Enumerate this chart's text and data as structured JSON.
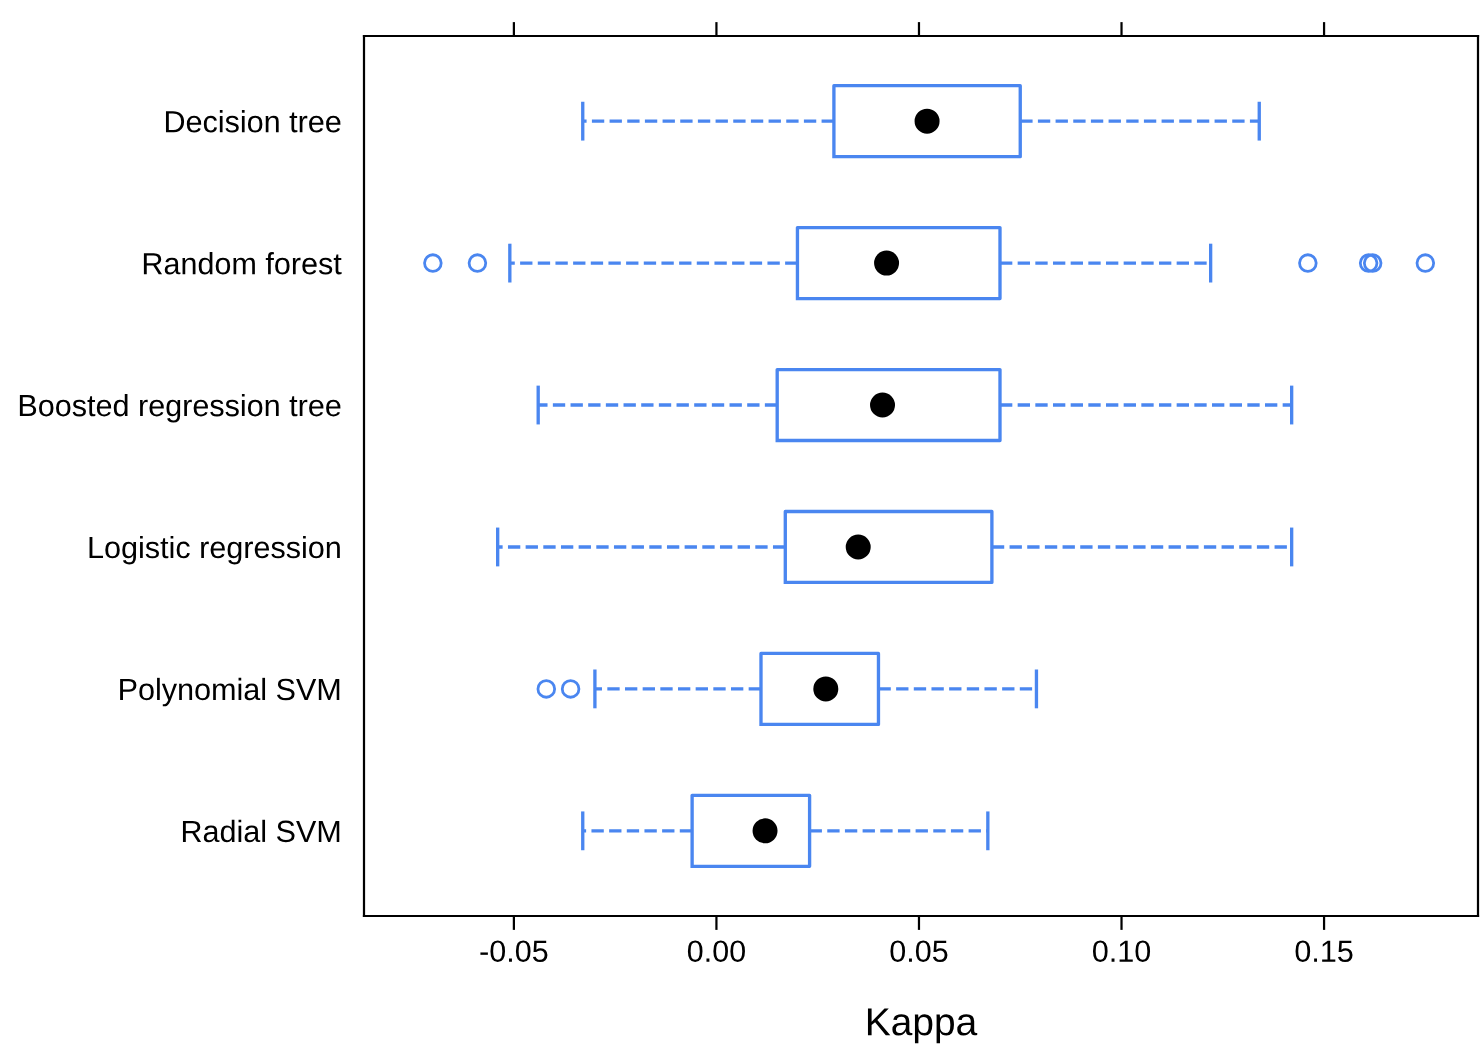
{
  "chart_data": {
    "type": "box",
    "xlabel": "Kappa",
    "orientation": "horizontal",
    "color": "#4a86f0",
    "categories": [
      "Decision tree",
      "Random forest",
      "Boosted regression tree",
      "Logistic regression",
      "Polynomial SVM",
      "Radial SVM"
    ],
    "boxes": [
      {
        "low": -0.033,
        "q1": 0.029,
        "median": 0.052,
        "q3": 0.075,
        "high": 0.134
      },
      {
        "low": -0.051,
        "q1": 0.02,
        "median": 0.042,
        "q3": 0.07,
        "high": 0.122,
        "outliers": [
          -0.07,
          -0.059,
          0.146,
          0.161,
          0.162,
          0.175
        ]
      },
      {
        "low": -0.044,
        "q1": 0.015,
        "median": 0.041,
        "q3": 0.07,
        "high": 0.142
      },
      {
        "low": -0.054,
        "q1": 0.017,
        "median": 0.035,
        "q3": 0.068,
        "high": 0.142
      },
      {
        "low": -0.03,
        "q1": 0.011,
        "median": 0.027,
        "q3": 0.04,
        "high": 0.079,
        "outliers": [
          -0.042,
          -0.036
        ]
      },
      {
        "low": -0.033,
        "q1": -0.006,
        "median": 0.012,
        "q3": 0.023,
        "high": 0.067
      }
    ],
    "xlim": [
      -0.087,
      0.188
    ],
    "xticks": [
      {
        "value": -0.05,
        "label": "-0.05"
      },
      {
        "value": 0,
        "label": "0.00"
      },
      {
        "value": 0.05,
        "label": "0.05"
      },
      {
        "value": 0.1,
        "label": "0.10"
      },
      {
        "value": 0.15,
        "label": "0.15"
      }
    ],
    "grid": false
  }
}
